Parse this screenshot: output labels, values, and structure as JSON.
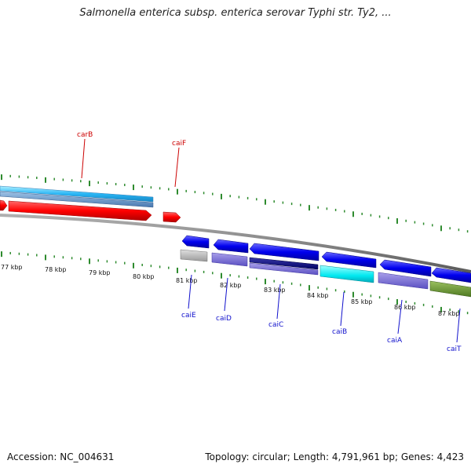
{
  "title": "Salmonella enterica subsp. enterica serovar Typhi str. Ty2, ...",
  "footer": {
    "accession": "Accession: NC_004631",
    "summary": "Topology: circular; Length: 4,791,961 bp; Genes: 4,423"
  },
  "scale_labels": [
    "77 kbp",
    "78 kbp",
    "79 kbp",
    "80 kbp",
    "81 kbp",
    "82 kbp",
    "83 kbp",
    "84 kbp",
    "85 kbp",
    "86 kbp",
    "87 kbp"
  ],
  "genes": [
    {
      "name": "carB",
      "color": "#cc0000"
    },
    {
      "name": "caiF",
      "color": "#cc0000"
    },
    {
      "name": "caiE",
      "color": "#1010cc"
    },
    {
      "name": "caiD",
      "color": "#1010cc"
    },
    {
      "name": "caiC",
      "color": "#1010cc"
    },
    {
      "name": "caiB",
      "color": "#1010cc"
    },
    {
      "name": "caiA",
      "color": "#1010cc"
    },
    {
      "name": "caiT",
      "color": "#1010cc"
    }
  ],
  "colors": {
    "backbone": "#808080",
    "ticks": "#2e8b2e",
    "forward_strand": "#ff0000",
    "reverse_strand": "#0000ee"
  }
}
